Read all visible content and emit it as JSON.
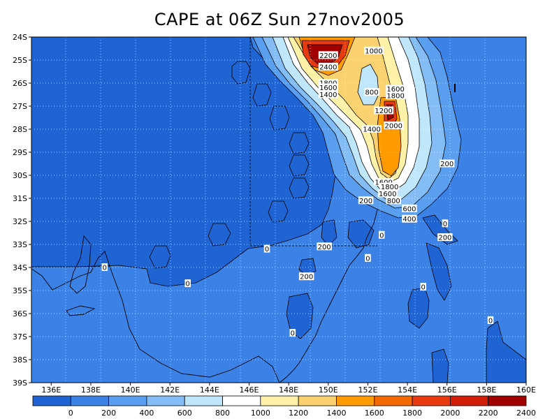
{
  "title": "CAPE at 06Z Sun 27nov2005",
  "lat_labels": [
    "24S",
    "25S",
    "26S",
    "27S",
    "28S",
    "29S",
    "30S",
    "31S",
    "32S",
    "33S",
    "34S",
    "35S",
    "36S",
    "37S",
    "38S",
    "39S"
  ],
  "lon_labels": [
    "136E",
    "138E",
    "140E",
    "142E",
    "144E",
    "146E",
    "148E",
    "150E",
    "152E",
    "154E",
    "156E",
    "158E",
    "160E"
  ],
  "colorbar": {
    "colors": [
      "#1f64d2",
      "#3c82e6",
      "#5a9ef0",
      "#84bdf5",
      "#bfe6fa",
      "#ffffff",
      "#fff2a8",
      "#fcd270",
      "#ff9a00",
      "#f56a00",
      "#e83a10",
      "#d01c08",
      "#a00000"
    ],
    "labels": [
      "0",
      "200",
      "400",
      "600",
      "800",
      "1000",
      "1200",
      "1400",
      "1600",
      "1800",
      "2000",
      "2200",
      "2400"
    ]
  },
  "contour_labels": [
    {
      "text": "2200",
      "lon": 150.0,
      "lat": -24.8
    },
    {
      "text": "2400",
      "lon": 150.0,
      "lat": -25.3
    },
    {
      "text": "1000",
      "lon": 152.3,
      "lat": -24.6
    },
    {
      "text": "1800",
      "lon": 150.0,
      "lat": -26.0
    },
    {
      "text": "1600",
      "lon": 150.0,
      "lat": -26.2
    },
    {
      "text": "1400",
      "lon": 150.0,
      "lat": -26.5
    },
    {
      "text": "800",
      "lon": 152.2,
      "lat": -26.4
    },
    {
      "text": "1600",
      "lon": 153.4,
      "lat": -26.25
    },
    {
      "text": "1800",
      "lon": 153.4,
      "lat": -26.55
    },
    {
      "text": "1200",
      "lon": 152.8,
      "lat": -27.2
    },
    {
      "text": "2000",
      "lon": 153.3,
      "lat": -27.85
    },
    {
      "text": "1400",
      "lon": 152.2,
      "lat": -28.0
    },
    {
      "text": "200",
      "lon": 156.0,
      "lat": -29.5
    },
    {
      "text": "1600",
      "lon": 152.8,
      "lat": -30.3
    },
    {
      "text": "1800",
      "lon": 153.1,
      "lat": -30.5
    },
    {
      "text": "1600",
      "lon": 153.0,
      "lat": -30.8
    },
    {
      "text": "800",
      "lon": 153.3,
      "lat": -31.1
    },
    {
      "text": "200",
      "lon": 151.9,
      "lat": -31.1
    },
    {
      "text": "600",
      "lon": 154.1,
      "lat": -31.45
    },
    {
      "text": "400",
      "lon": 154.1,
      "lat": -31.9
    },
    {
      "text": "0",
      "lon": 155.9,
      "lat": -32.1
    },
    {
      "text": "0",
      "lon": 152.7,
      "lat": -32.6
    },
    {
      "text": "200",
      "lon": 155.9,
      "lat": -32.7
    },
    {
      "text": "200",
      "lon": 149.8,
      "lat": -33.1
    },
    {
      "text": "0",
      "lon": 146.9,
      "lat": -33.2
    },
    {
      "text": "0",
      "lon": 152.0,
      "lat": -33.6
    },
    {
      "text": "0",
      "lon": 138.7,
      "lat": -34.0
    },
    {
      "text": "200",
      "lon": 148.9,
      "lat": -34.4
    },
    {
      "text": "0",
      "lon": 142.9,
      "lat": -34.7
    },
    {
      "text": "0",
      "lon": 154.8,
      "lat": -34.85
    },
    {
      "text": "0",
      "lon": 158.2,
      "lat": -36.3
    },
    {
      "text": "0",
      "lon": 148.2,
      "lat": -36.85
    }
  ]
}
